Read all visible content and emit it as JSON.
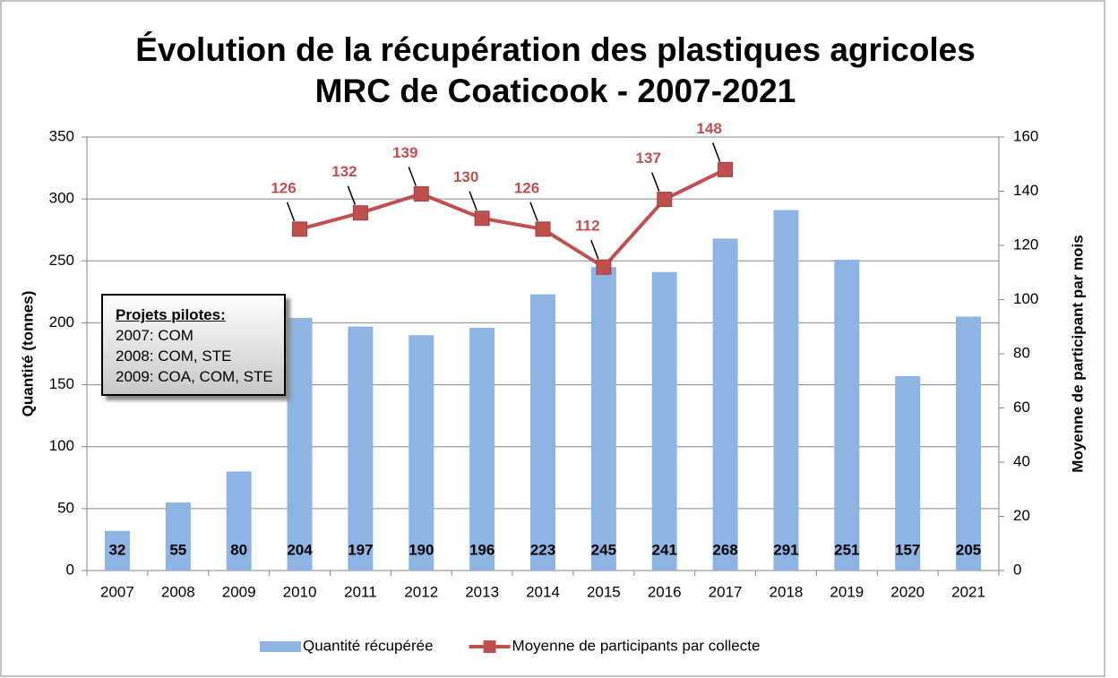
{
  "chart_data": {
    "type": "combo",
    "title": "Évolution de la récupération des plastiques agricoles",
    "subtitle": "MRC de Coaticook - 2007-2021",
    "y_label": "Quantité (tonnes)",
    "y2_label": "Moyenne de participant par mois",
    "categories": [
      "2007",
      "2008",
      "2009",
      "2010",
      "2011",
      "2012",
      "2013",
      "2014",
      "2015",
      "2016",
      "2017",
      "2018",
      "2019",
      "2020",
      "2021"
    ],
    "series": [
      {
        "name": "Quantité récupérée",
        "type": "bar",
        "color": "#8db4e2",
        "values": [
          32,
          55,
          80,
          204,
          197,
          190,
          196,
          223,
          245,
          241,
          268,
          291,
          251,
          157,
          205
        ]
      },
      {
        "name": "Moyenne de participants par collecte",
        "type": "line",
        "axis": "y2",
        "color": "#c0504d",
        "values": [
          null,
          null,
          null,
          126,
          132,
          139,
          130,
          126,
          112,
          137,
          148,
          null,
          null,
          null,
          null
        ]
      }
    ],
    "bar_labels_series": 0,
    "line_labels_series": 1,
    "ylim": [
      0,
      350
    ],
    "yticks": [
      0,
      50,
      100,
      150,
      200,
      250,
      300,
      350
    ],
    "y2lim": [
      0,
      160
    ],
    "y2ticks": [
      0,
      20,
      40,
      60,
      80,
      100,
      120,
      140,
      160
    ],
    "grid": true,
    "legend": "bottom",
    "annotation": {
      "heading": "Projets pilotes:",
      "lines": [
        "2007: COM",
        "2008: COM, STE",
        "2009: COA, COM, STE"
      ]
    }
  }
}
